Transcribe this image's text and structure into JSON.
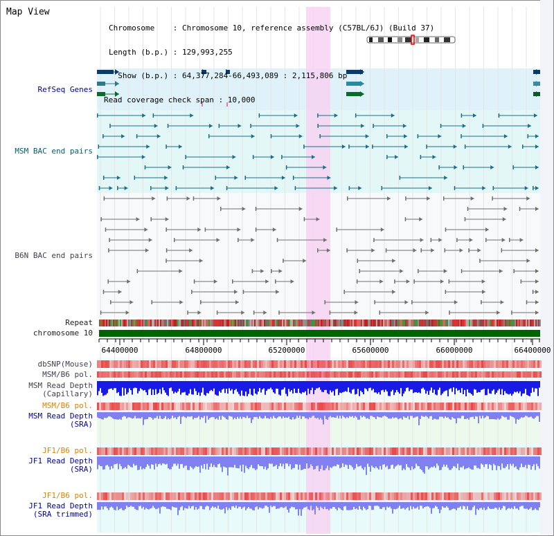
{
  "header": {
    "view_title": "Map View",
    "info_lines": [
      "Chromosome    : Chromosome 10, reference assembly (C57BL/6J) (Build 37)",
      "Length (b.p.) : 129,993,255",
      "  Show (b.p.) : 64,377,284-66,493,089 : 2,115,806 bp",
      "Read coverage check span : 10,000"
    ]
  },
  "tracks": {
    "refseq": "RefSeq Genes",
    "msm_bac": "MSM BAC end pairs",
    "b6n_bac": "B6N BAC end pairs",
    "repeat": "Repeat",
    "chromosome": "chromosome 10",
    "dbsnp": "dbSNP(Mouse)",
    "msm_b6_pol_1": "MSM/B6 pol.",
    "msm_depth_cap_1": "MSM Read Depth",
    "msm_depth_cap_2": "(Capillary)",
    "msm_b6_pol_2": "MSM/B6 pol.",
    "msm_depth_sra_1": "MSM Read Depth",
    "msm_depth_sra_2": "(SRA)",
    "jf1_b6_pol_1": "JF1/B6 pol.",
    "jf1_depth_sra_1": "JF1 Read Depth",
    "jf1_depth_sra_2": "(SRA)",
    "jf1_b6_pol_2": "JF1/B6 pol.",
    "jf1_depth_trim_1": "JF1 Read Depth",
    "jf1_depth_trim_2": "(SRA trimmed)"
  },
  "axis": {
    "ticks": [
      "64400000",
      "64800000",
      "65200000",
      "65600000",
      "66000000",
      "66400000"
    ]
  },
  "colors": {
    "refseq_bg": "#dff2fa",
    "msm_bg": "#e3f7f7",
    "highlight": "#f7d4f2",
    "chromosome_bar": "#006400",
    "snp": "#e84848",
    "depth_capillary": "#1a1ae6",
    "depth_sra": "#8080f0",
    "label_blue": "#0000a0",
    "label_teal": "#006070",
    "label_orange": "#e08000"
  }
}
